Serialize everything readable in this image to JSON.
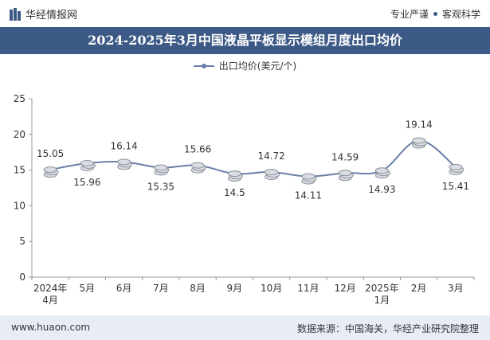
{
  "header": {
    "brand": "华经情报网",
    "slogan_left": "专业严谨",
    "slogan_right": "客观科学"
  },
  "footer": {
    "website": "www.huaon.com",
    "source": "数据来源：中国海关，华经产业研究院整理"
  },
  "colors": {
    "title_bar": "#3d5a86",
    "line": "#6a7fa8",
    "footer_bg": "#e8edf5"
  },
  "chart_data": {
    "type": "line",
    "title": "2024-2025年3月中国液晶平板显示模组月度出口均价",
    "xlabel": "",
    "ylabel": "",
    "categories": [
      "2024年4月",
      "5月",
      "6月",
      "7月",
      "8月",
      "9月",
      "10月",
      "11月",
      "12月",
      "2025年1月",
      "2月",
      "3月"
    ],
    "series": [
      {
        "name": "出口均价(美元/个)",
        "values": [
          15.05,
          15.96,
          16.14,
          15.35,
          15.66,
          14.5,
          14.72,
          14.11,
          14.59,
          14.93,
          19.14,
          15.41
        ]
      }
    ],
    "ylim": [
      0,
      25
    ],
    "yticks": [
      0,
      5,
      10,
      15,
      20,
      25
    ],
    "grid": false,
    "legend": "top-center",
    "label_positions": [
      "above",
      "below",
      "above",
      "below",
      "above",
      "below",
      "above",
      "below",
      "above",
      "below",
      "above",
      "below"
    ]
  }
}
